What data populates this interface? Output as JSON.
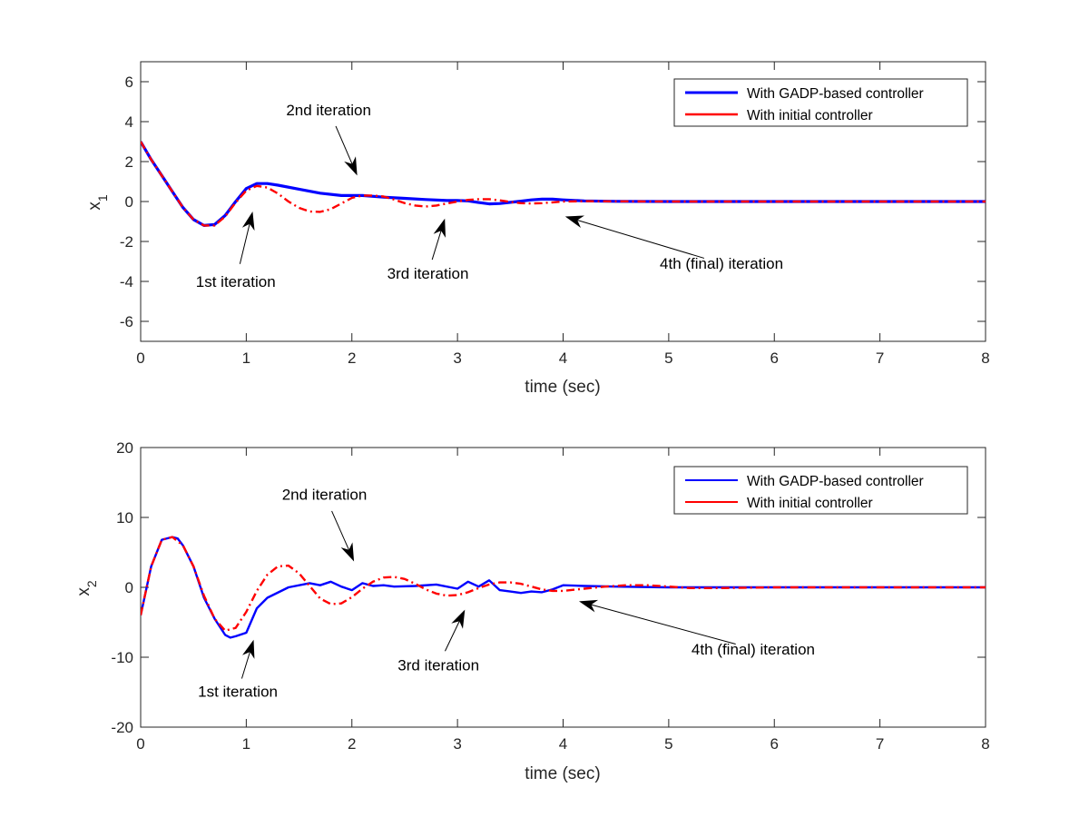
{
  "chart_data": [
    {
      "type": "line",
      "xlabel": "time (sec)",
      "ylabel_main": "x",
      "ylabel_sub": "1",
      "xlim": [
        0,
        8
      ],
      "ylim": [
        -7,
        7
      ],
      "xticks": [
        0,
        1,
        2,
        3,
        4,
        5,
        6,
        7,
        8
      ],
      "yticks": [
        -6,
        -4,
        -2,
        0,
        2,
        4,
        6
      ],
      "legend_position": "top-right",
      "series": [
        {
          "name": "With GADP-based controller",
          "color": "#0000FF",
          "style": "solid",
          "x": [
            0,
            0.1,
            0.2,
            0.3,
            0.4,
            0.5,
            0.6,
            0.7,
            0.8,
            0.9,
            1.0,
            1.1,
            1.2,
            1.3,
            1.5,
            1.7,
            1.9,
            2.1,
            2.3,
            2.5,
            2.7,
            2.9,
            3.0,
            3.1,
            3.2,
            3.3,
            3.4,
            3.5,
            3.6,
            3.7,
            3.8,
            3.9,
            4.0,
            4.2,
            4.5,
            5.0,
            6.0,
            7.0,
            8.0
          ],
          "y": [
            3.0,
            2.1,
            1.3,
            0.5,
            -0.3,
            -0.9,
            -1.2,
            -1.15,
            -0.7,
            0.0,
            0.65,
            0.9,
            0.9,
            0.82,
            0.62,
            0.42,
            0.3,
            0.3,
            0.22,
            0.16,
            0.1,
            0.05,
            0.05,
            0.03,
            -0.05,
            -0.12,
            -0.1,
            -0.04,
            0.02,
            0.08,
            0.12,
            0.12,
            0.08,
            0.03,
            0.01,
            0.0,
            0.0,
            0.0,
            0.0
          ]
        },
        {
          "name": "With initial controller",
          "color": "#FF0000",
          "style": "dashdot",
          "x": [
            0,
            0.1,
            0.2,
            0.3,
            0.4,
            0.5,
            0.6,
            0.7,
            0.8,
            0.9,
            1.0,
            1.1,
            1.2,
            1.3,
            1.4,
            1.5,
            1.6,
            1.7,
            1.8,
            1.9,
            2.0,
            2.1,
            2.2,
            2.3,
            2.4,
            2.5,
            2.6,
            2.7,
            2.8,
            2.9,
            3.0,
            3.1,
            3.2,
            3.3,
            3.4,
            3.5,
            3.6,
            3.7,
            3.8,
            3.9,
            4.0,
            4.2,
            4.5,
            5.0,
            6.0,
            7.0,
            8.0
          ],
          "y": [
            3.0,
            2.1,
            1.3,
            0.5,
            -0.3,
            -0.9,
            -1.2,
            -1.2,
            -0.75,
            -0.05,
            0.55,
            0.78,
            0.7,
            0.4,
            0.0,
            -0.32,
            -0.5,
            -0.52,
            -0.38,
            -0.1,
            0.18,
            0.3,
            0.3,
            0.25,
            0.1,
            -0.08,
            -0.2,
            -0.25,
            -0.2,
            -0.1,
            0.0,
            0.08,
            0.12,
            0.12,
            0.06,
            -0.02,
            -0.08,
            -0.1,
            -0.08,
            -0.04,
            0.0,
            0.02,
            0.01,
            0.0,
            0.0,
            0.0,
            0.0
          ]
        }
      ],
      "annotations": [
        {
          "text": "2nd iteration",
          "x": 1.78,
          "y": 4.6,
          "arrow_to": [
            2.05,
            1.3
          ]
        },
        {
          "text": "1st iteration",
          "x": 0.9,
          "y": -4.0,
          "arrow_to": [
            1.06,
            -0.5
          ]
        },
        {
          "text": "3rd iteration",
          "x": 2.72,
          "y": -3.6,
          "arrow_to": [
            2.88,
            -0.85
          ]
        },
        {
          "text": "4th (final) iteration",
          "x": 5.5,
          "y": -3.1,
          "arrow_to": [
            4.02,
            -0.75
          ]
        }
      ]
    },
    {
      "type": "line",
      "xlabel": "time (sec)",
      "ylabel_main": "x",
      "ylabel_sub": "2",
      "xlim": [
        0,
        8
      ],
      "ylim": [
        -20,
        20
      ],
      "xticks": [
        0,
        1,
        2,
        3,
        4,
        5,
        6,
        7,
        8
      ],
      "yticks": [
        -20,
        -10,
        0,
        10,
        20
      ],
      "legend_position": "top-right",
      "series": [
        {
          "name": "With GADP-based controller",
          "color": "#0000FF",
          "style": "solid",
          "x": [
            0,
            0.1,
            0.2,
            0.3,
            0.35,
            0.4,
            0.5,
            0.6,
            0.7,
            0.8,
            0.85,
            0.9,
            1.0,
            1.1,
            1.2,
            1.4,
            1.6,
            1.7,
            1.8,
            1.9,
            2.0,
            2.1,
            2.2,
            2.3,
            2.4,
            2.6,
            2.8,
            3.0,
            3.1,
            3.2,
            3.3,
            3.4,
            3.5,
            3.6,
            3.7,
            3.8,
            3.9,
            4.0,
            4.2,
            4.5,
            5.0,
            6.0,
            7.0,
            8.0
          ],
          "y": [
            -4.0,
            3.0,
            6.8,
            7.2,
            7.0,
            6.0,
            3.0,
            -1.5,
            -4.5,
            -6.8,
            -7.2,
            -7.0,
            -6.5,
            -3.0,
            -1.5,
            0.0,
            0.6,
            0.3,
            0.8,
            0.1,
            -0.4,
            0.6,
            0.2,
            0.3,
            0.1,
            0.2,
            0.4,
            -0.2,
            0.8,
            0.1,
            1.0,
            -0.4,
            -0.6,
            -0.8,
            -0.6,
            -0.7,
            -0.3,
            0.3,
            0.2,
            0.1,
            0.0,
            0.0,
            0.0,
            0.0
          ]
        },
        {
          "name": "With initial controller",
          "color": "#FF0000",
          "style": "dashdot",
          "x": [
            0,
            0.1,
            0.2,
            0.3,
            0.4,
            0.5,
            0.6,
            0.7,
            0.8,
            0.9,
            1.0,
            1.1,
            1.2,
            1.3,
            1.4,
            1.5,
            1.6,
            1.7,
            1.8,
            1.9,
            2.0,
            2.1,
            2.2,
            2.3,
            2.4,
            2.5,
            2.6,
            2.7,
            2.8,
            2.9,
            3.0,
            3.1,
            3.2,
            3.3,
            3.4,
            3.5,
            3.6,
            3.7,
            3.8,
            3.9,
            4.0,
            4.2,
            4.4,
            4.6,
            4.8,
            5.0,
            5.2,
            5.5,
            6.0,
            7.0,
            8.0
          ],
          "y": [
            -4.0,
            3.0,
            6.8,
            7.2,
            6.0,
            3.0,
            -1.2,
            -4.5,
            -6.2,
            -5.8,
            -3.5,
            -0.5,
            1.8,
            3.0,
            3.1,
            2.0,
            0.2,
            -1.6,
            -2.4,
            -2.3,
            -1.4,
            -0.2,
            0.8,
            1.4,
            1.5,
            1.2,
            0.5,
            -0.3,
            -0.9,
            -1.2,
            -1.1,
            -0.7,
            -0.1,
            0.4,
            0.7,
            0.7,
            0.5,
            0.1,
            -0.3,
            -0.5,
            -0.5,
            -0.2,
            0.1,
            0.3,
            0.3,
            0.1,
            -0.1,
            -0.1,
            0.0,
            0.0,
            0.0
          ]
        }
      ],
      "annotations": [
        {
          "text": "2nd iteration",
          "x": 1.74,
          "y": 13.3,
          "arrow_to": [
            2.02,
            3.7
          ]
        },
        {
          "text": "1st iteration",
          "x": 0.92,
          "y": -14.9,
          "arrow_to": [
            1.07,
            -7.5
          ]
        },
        {
          "text": "3rd iteration",
          "x": 2.82,
          "y": -11.1,
          "arrow_to": [
            3.07,
            -3.2
          ]
        },
        {
          "text": "4th (final) iteration",
          "x": 5.8,
          "y": -8.8,
          "arrow_to": [
            4.15,
            -2.0
          ]
        }
      ]
    }
  ]
}
